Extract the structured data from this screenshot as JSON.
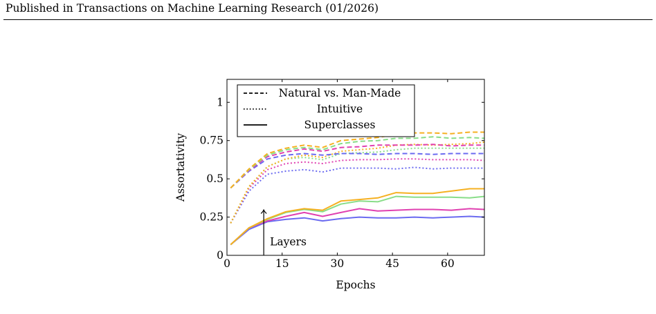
{
  "header": {
    "text": "Published in Transactions on Machine Learning Research (01/2026)"
  },
  "chart_data": {
    "type": "line",
    "title": "",
    "xlabel": "Epochs",
    "ylabel": "Assortativity",
    "xlim": [
      0,
      70
    ],
    "ylim": [
      0,
      1.15
    ],
    "xticks": [
      0,
      15,
      30,
      45,
      60
    ],
    "xtick_labels": [
      "0",
      "15",
      "30",
      "45",
      "60"
    ],
    "yticks": [
      0,
      0.25,
      0.5,
      0.75,
      1
    ],
    "ytick_labels": [
      "0",
      "0.25",
      "0.5",
      "0.75",
      "1"
    ],
    "grid": false,
    "legend_position": "top-left",
    "legend": [
      {
        "label": "Natural vs. Man-Made",
        "style": "dashed"
      },
      {
        "label": "Intuitive",
        "style": "dotted"
      },
      {
        "label": "Superclasses",
        "style": "solid"
      }
    ],
    "annotation": {
      "text": "Layers",
      "x": 10,
      "y_from": 0,
      "y_to": 0.3
    },
    "layer_colors": [
      "#6a6af0",
      "#e040b0",
      "#88dd88",
      "#f5b020"
    ],
    "x": [
      1,
      6,
      11,
      16,
      21,
      26,
      31,
      36,
      41,
      46,
      51,
      56,
      61,
      66,
      70
    ],
    "series": [
      {
        "style": "solid",
        "color": "#6a6af0",
        "values": [
          0.07,
          0.17,
          0.22,
          0.235,
          0.245,
          0.225,
          0.24,
          0.25,
          0.245,
          0.245,
          0.25,
          0.245,
          0.25,
          0.255,
          0.25
        ]
      },
      {
        "style": "solid",
        "color": "#e040b0",
        "values": [
          0.07,
          0.18,
          0.225,
          0.255,
          0.28,
          0.255,
          0.28,
          0.305,
          0.29,
          0.295,
          0.3,
          0.3,
          0.295,
          0.305,
          0.3
        ]
      },
      {
        "style": "solid",
        "color": "#88dd88",
        "values": [
          0.07,
          0.18,
          0.235,
          0.28,
          0.3,
          0.285,
          0.335,
          0.355,
          0.35,
          0.385,
          0.38,
          0.38,
          0.38,
          0.375,
          0.385
        ]
      },
      {
        "style": "solid",
        "color": "#f5b020",
        "values": [
          0.07,
          0.18,
          0.24,
          0.285,
          0.305,
          0.295,
          0.355,
          0.365,
          0.375,
          0.41,
          0.405,
          0.405,
          0.42,
          0.435,
          0.435
        ]
      },
      {
        "style": "dotted",
        "color": "#6a6af0",
        "values": [
          0.21,
          0.42,
          0.53,
          0.55,
          0.56,
          0.545,
          0.57,
          0.57,
          0.57,
          0.565,
          0.575,
          0.565,
          0.57,
          0.57,
          0.57
        ]
      },
      {
        "style": "dotted",
        "color": "#e040b0",
        "values": [
          0.21,
          0.44,
          0.56,
          0.6,
          0.61,
          0.6,
          0.62,
          0.625,
          0.625,
          0.63,
          0.63,
          0.625,
          0.625,
          0.625,
          0.62
        ]
      },
      {
        "style": "dotted",
        "color": "#88dd88",
        "values": [
          0.21,
          0.45,
          0.58,
          0.63,
          0.64,
          0.625,
          0.665,
          0.67,
          0.675,
          0.69,
          0.7,
          0.7,
          0.7,
          0.7,
          0.7
        ]
      },
      {
        "style": "dotted",
        "color": "#f5b020",
        "values": [
          0.21,
          0.45,
          0.58,
          0.63,
          0.655,
          0.64,
          0.68,
          0.69,
          0.7,
          0.72,
          0.725,
          0.72,
          0.725,
          0.73,
          0.74
        ]
      },
      {
        "style": "dashed",
        "color": "#6a6af0",
        "values": [
          0.44,
          0.55,
          0.63,
          0.655,
          0.665,
          0.655,
          0.665,
          0.665,
          0.66,
          0.665,
          0.665,
          0.66,
          0.665,
          0.665,
          0.665
        ]
      },
      {
        "style": "dashed",
        "color": "#e040b0",
        "values": [
          0.44,
          0.555,
          0.645,
          0.675,
          0.695,
          0.68,
          0.705,
          0.71,
          0.72,
          0.72,
          0.72,
          0.725,
          0.715,
          0.72,
          0.72
        ]
      },
      {
        "style": "dashed",
        "color": "#88dd88",
        "values": [
          0.44,
          0.56,
          0.655,
          0.69,
          0.705,
          0.69,
          0.73,
          0.745,
          0.75,
          0.765,
          0.765,
          0.775,
          0.765,
          0.77,
          0.765
        ]
      },
      {
        "style": "dashed",
        "color": "#f5b020",
        "values": [
          0.44,
          0.565,
          0.665,
          0.7,
          0.72,
          0.705,
          0.75,
          0.76,
          0.77,
          0.79,
          0.8,
          0.8,
          0.795,
          0.805,
          0.805
        ]
      }
    ]
  }
}
